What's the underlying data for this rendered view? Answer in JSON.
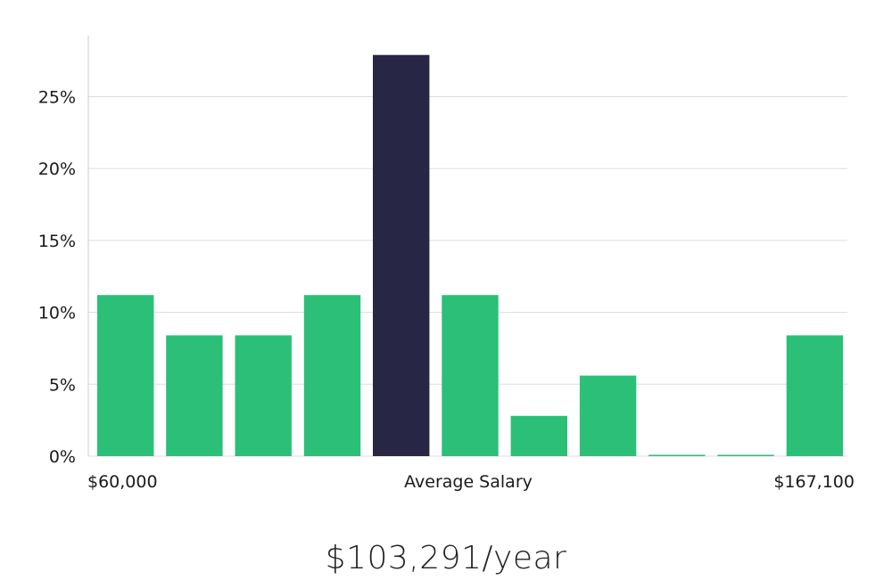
{
  "chart_data": {
    "type": "bar",
    "categories": [
      "1",
      "2",
      "3",
      "4",
      "5",
      "6",
      "7",
      "8",
      "9",
      "10",
      "11"
    ],
    "values": [
      11.2,
      8.4,
      8.4,
      11.2,
      27.9,
      11.2,
      2.8,
      5.6,
      0,
      0,
      8.4
    ],
    "highlight_index": 4,
    "ylim": [
      0,
      28.5
    ],
    "yticks": [
      0,
      5,
      10,
      15,
      20,
      25
    ],
    "ytick_labels": [
      "0%",
      "5%",
      "10%",
      "15%",
      "20%",
      "25%"
    ],
    "x_labels": {
      "left": "$60,000",
      "center": "Average Salary",
      "right": "$167,100"
    },
    "grid": true,
    "colors": {
      "bar": "#2bbf78",
      "highlight": "#272645",
      "grid": "#dddddd",
      "axis": "#cccccc"
    }
  },
  "summary": {
    "salary": "$103,291/year"
  }
}
